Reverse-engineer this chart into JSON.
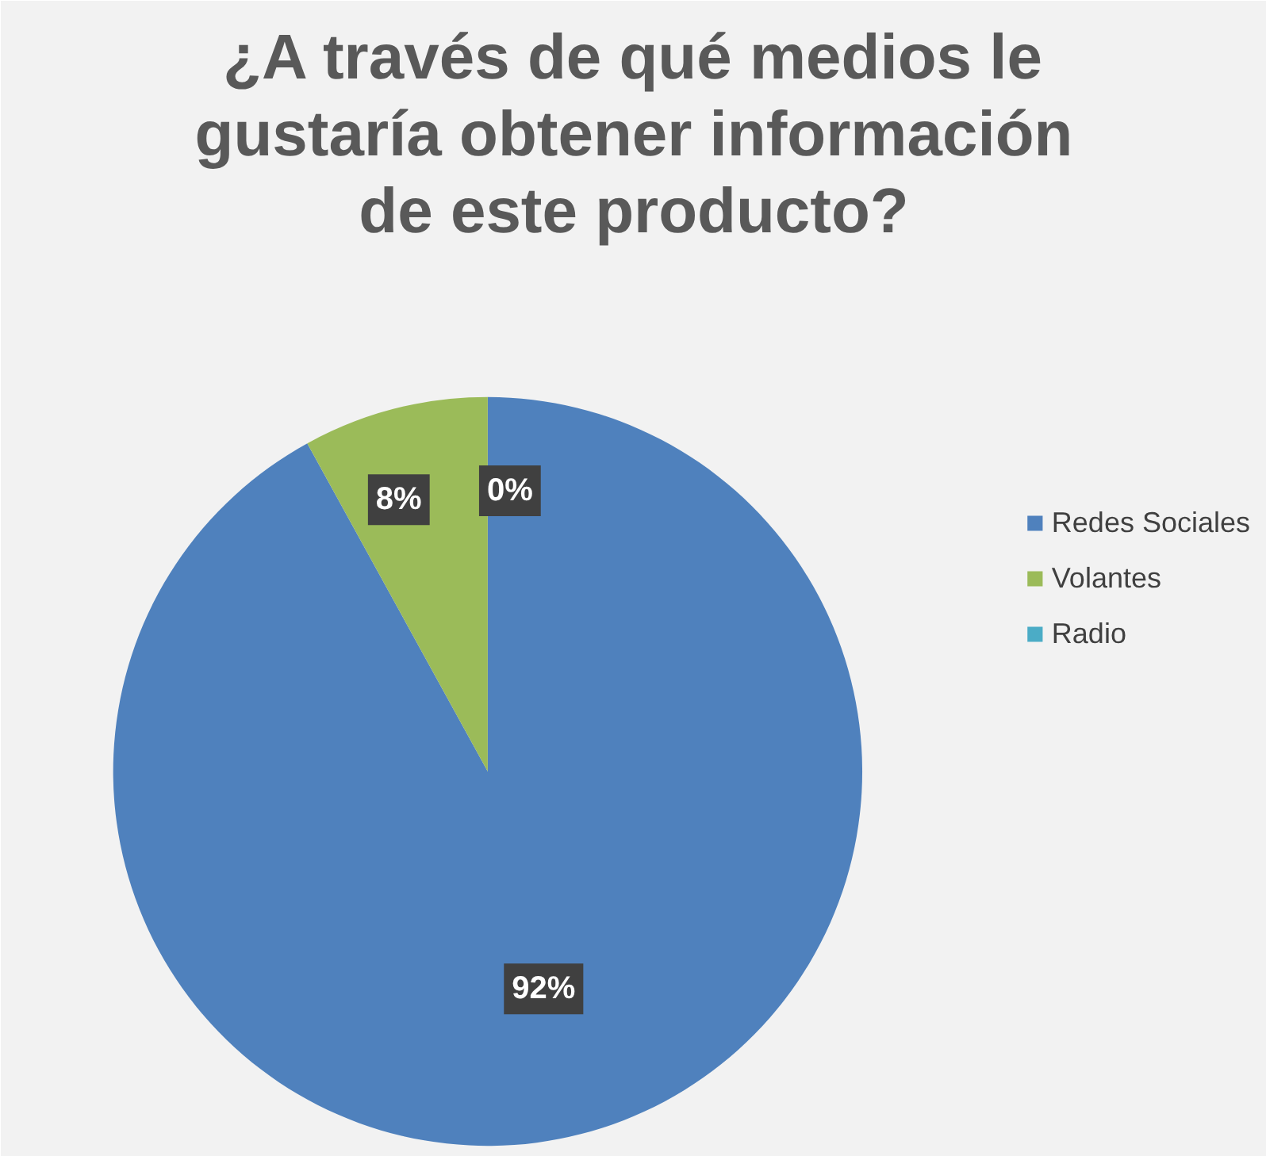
{
  "chart_data": {
    "type": "pie",
    "title": "¿A través de qué medios le gustaría obtener información de este producto?",
    "categories": [
      "Redes Sociales",
      "Volantes",
      "Radio"
    ],
    "values": [
      92,
      8,
      0
    ],
    "value_labels": [
      "92%",
      "8%",
      "0%"
    ],
    "colors": [
      "#4f81bd",
      "#9bbb59",
      "#4bacc6"
    ],
    "legend": "right"
  }
}
